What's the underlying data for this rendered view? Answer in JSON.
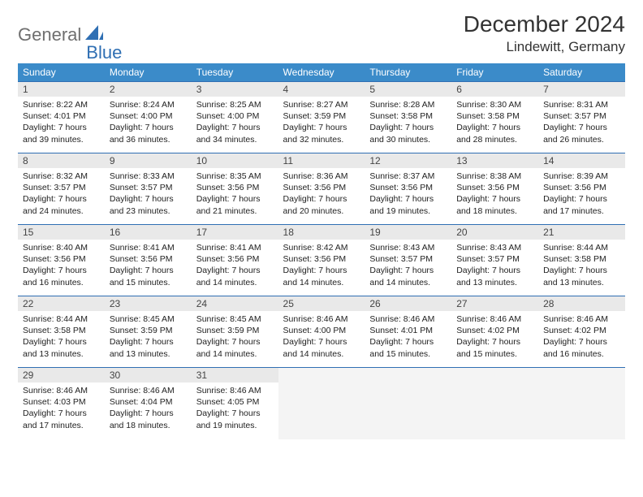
{
  "logo": {
    "text1": "General",
    "text2": "Blue"
  },
  "title": "December 2024",
  "location": "Lindewitt, Germany",
  "styling": {
    "header_bg": "#3b8bc9",
    "header_text": "#ffffff",
    "border_color": "#2f6fb3",
    "daynum_bg": "#e9e9e9",
    "body_font_size": 10.5,
    "title_font_size": 28,
    "location_font_size": 17,
    "dayhead_font_size": 12
  },
  "dayHeaders": [
    "Sunday",
    "Monday",
    "Tuesday",
    "Wednesday",
    "Thursday",
    "Friday",
    "Saturday"
  ],
  "weeks": [
    [
      {
        "num": "1",
        "sunrise": "8:22 AM",
        "sunset": "4:01 PM",
        "daylight": "7 hours and 39 minutes."
      },
      {
        "num": "2",
        "sunrise": "8:24 AM",
        "sunset": "4:00 PM",
        "daylight": "7 hours and 36 minutes."
      },
      {
        "num": "3",
        "sunrise": "8:25 AM",
        "sunset": "4:00 PM",
        "daylight": "7 hours and 34 minutes."
      },
      {
        "num": "4",
        "sunrise": "8:27 AM",
        "sunset": "3:59 PM",
        "daylight": "7 hours and 32 minutes."
      },
      {
        "num": "5",
        "sunrise": "8:28 AM",
        "sunset": "3:58 PM",
        "daylight": "7 hours and 30 minutes."
      },
      {
        "num": "6",
        "sunrise": "8:30 AM",
        "sunset": "3:58 PM",
        "daylight": "7 hours and 28 minutes."
      },
      {
        "num": "7",
        "sunrise": "8:31 AM",
        "sunset": "3:57 PM",
        "daylight": "7 hours and 26 minutes."
      }
    ],
    [
      {
        "num": "8",
        "sunrise": "8:32 AM",
        "sunset": "3:57 PM",
        "daylight": "7 hours and 24 minutes."
      },
      {
        "num": "9",
        "sunrise": "8:33 AM",
        "sunset": "3:57 PM",
        "daylight": "7 hours and 23 minutes."
      },
      {
        "num": "10",
        "sunrise": "8:35 AM",
        "sunset": "3:56 PM",
        "daylight": "7 hours and 21 minutes."
      },
      {
        "num": "11",
        "sunrise": "8:36 AM",
        "sunset": "3:56 PM",
        "daylight": "7 hours and 20 minutes."
      },
      {
        "num": "12",
        "sunrise": "8:37 AM",
        "sunset": "3:56 PM",
        "daylight": "7 hours and 19 minutes."
      },
      {
        "num": "13",
        "sunrise": "8:38 AM",
        "sunset": "3:56 PM",
        "daylight": "7 hours and 18 minutes."
      },
      {
        "num": "14",
        "sunrise": "8:39 AM",
        "sunset": "3:56 PM",
        "daylight": "7 hours and 17 minutes."
      }
    ],
    [
      {
        "num": "15",
        "sunrise": "8:40 AM",
        "sunset": "3:56 PM",
        "daylight": "7 hours and 16 minutes."
      },
      {
        "num": "16",
        "sunrise": "8:41 AM",
        "sunset": "3:56 PM",
        "daylight": "7 hours and 15 minutes."
      },
      {
        "num": "17",
        "sunrise": "8:41 AM",
        "sunset": "3:56 PM",
        "daylight": "7 hours and 14 minutes."
      },
      {
        "num": "18",
        "sunrise": "8:42 AM",
        "sunset": "3:56 PM",
        "daylight": "7 hours and 14 minutes."
      },
      {
        "num": "19",
        "sunrise": "8:43 AM",
        "sunset": "3:57 PM",
        "daylight": "7 hours and 14 minutes."
      },
      {
        "num": "20",
        "sunrise": "8:43 AM",
        "sunset": "3:57 PM",
        "daylight": "7 hours and 13 minutes."
      },
      {
        "num": "21",
        "sunrise": "8:44 AM",
        "sunset": "3:58 PM",
        "daylight": "7 hours and 13 minutes."
      }
    ],
    [
      {
        "num": "22",
        "sunrise": "8:44 AM",
        "sunset": "3:58 PM",
        "daylight": "7 hours and 13 minutes."
      },
      {
        "num": "23",
        "sunrise": "8:45 AM",
        "sunset": "3:59 PM",
        "daylight": "7 hours and 13 minutes."
      },
      {
        "num": "24",
        "sunrise": "8:45 AM",
        "sunset": "3:59 PM",
        "daylight": "7 hours and 14 minutes."
      },
      {
        "num": "25",
        "sunrise": "8:46 AM",
        "sunset": "4:00 PM",
        "daylight": "7 hours and 14 minutes."
      },
      {
        "num": "26",
        "sunrise": "8:46 AM",
        "sunset": "4:01 PM",
        "daylight": "7 hours and 15 minutes."
      },
      {
        "num": "27",
        "sunrise": "8:46 AM",
        "sunset": "4:02 PM",
        "daylight": "7 hours and 15 minutes."
      },
      {
        "num": "28",
        "sunrise": "8:46 AM",
        "sunset": "4:02 PM",
        "daylight": "7 hours and 16 minutes."
      }
    ],
    [
      {
        "num": "29",
        "sunrise": "8:46 AM",
        "sunset": "4:03 PM",
        "daylight": "7 hours and 17 minutes."
      },
      {
        "num": "30",
        "sunrise": "8:46 AM",
        "sunset": "4:04 PM",
        "daylight": "7 hours and 18 minutes."
      },
      {
        "num": "31",
        "sunrise": "8:46 AM",
        "sunset": "4:05 PM",
        "daylight": "7 hours and 19 minutes."
      },
      null,
      null,
      null,
      null
    ]
  ],
  "labels": {
    "sunrise": "Sunrise: ",
    "sunset": "Sunset: ",
    "daylight": "Daylight: "
  }
}
